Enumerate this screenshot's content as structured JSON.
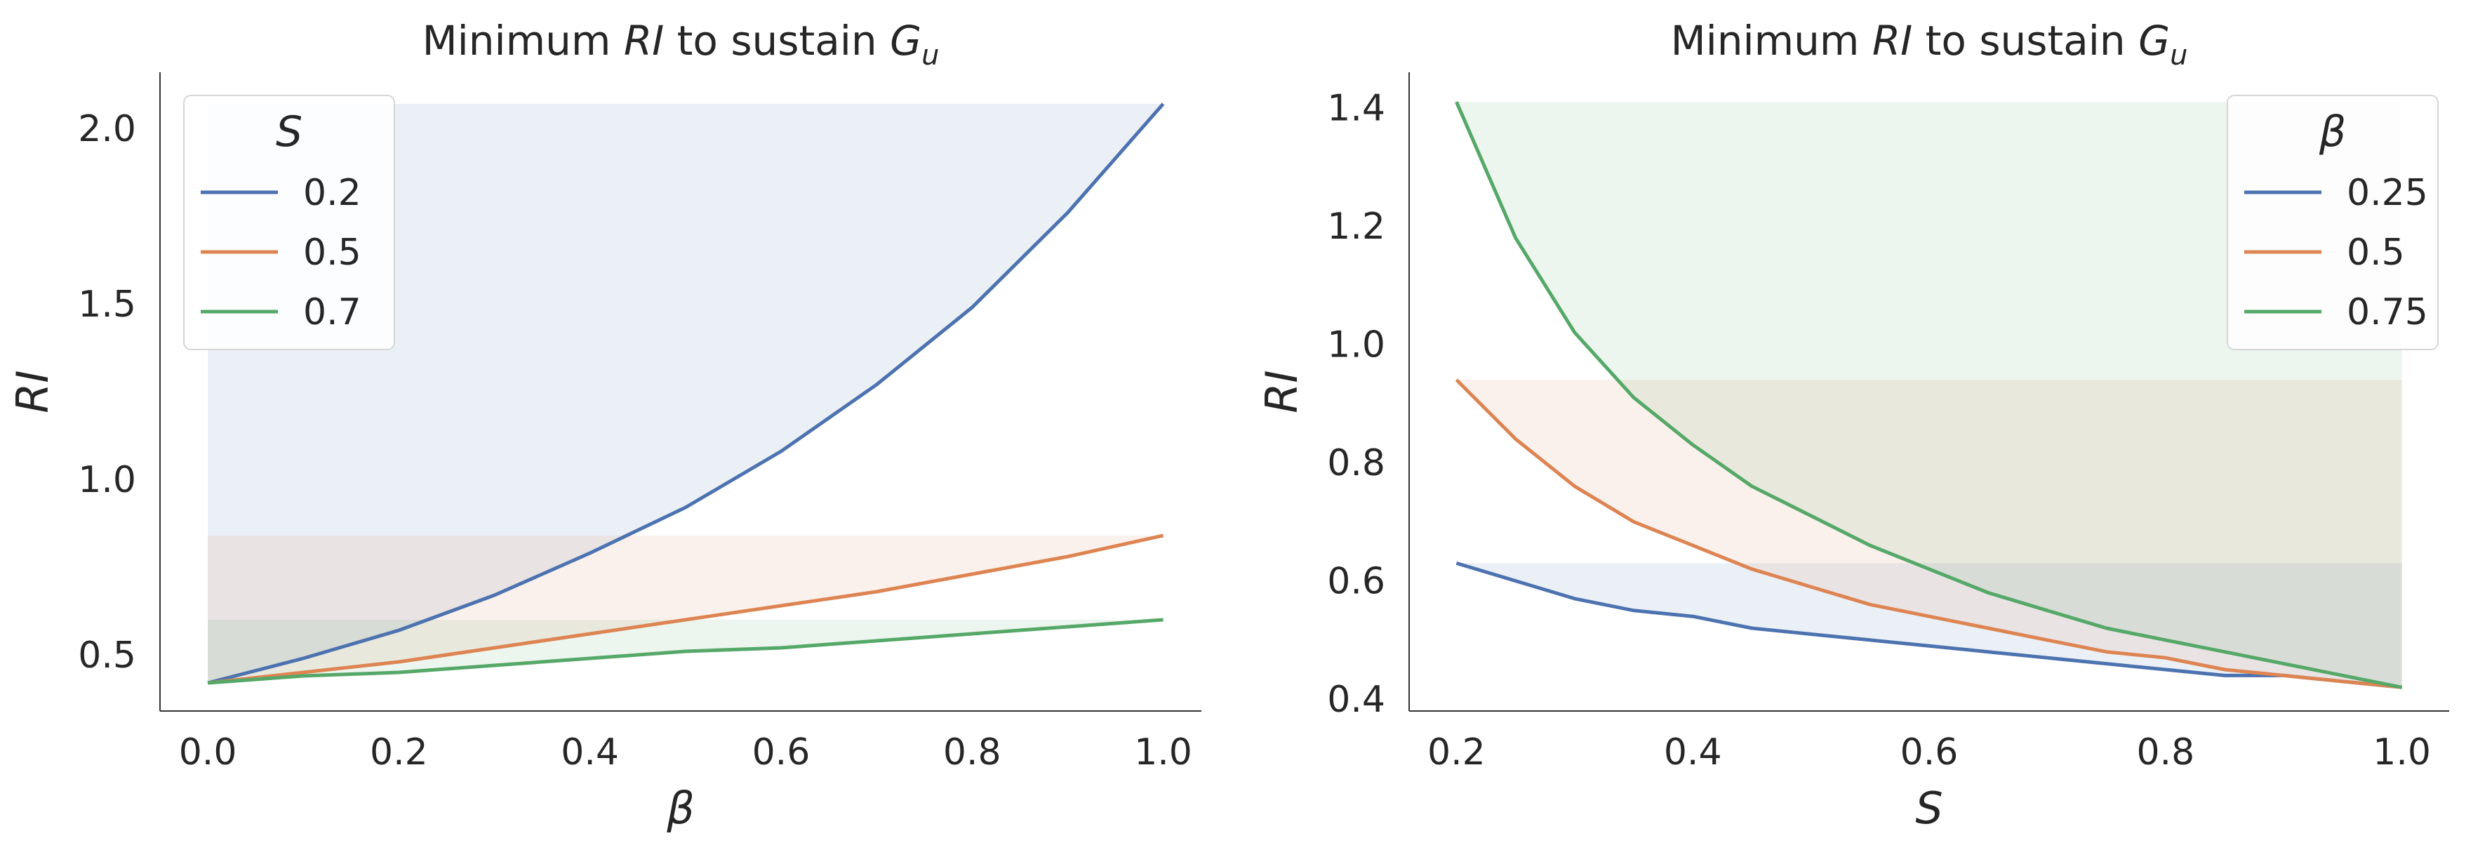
{
  "chart_data": [
    {
      "type": "line",
      "title": "Minimum RI to sustain G_u",
      "title_parts": {
        "pre": "Minimum ",
        "ital": "RI",
        "mid": " to sustain ",
        "sym": "G",
        "sub": "u"
      },
      "xlabel": "β",
      "ylabel": "RI",
      "xlim": [
        -0.05,
        1.04
      ],
      "ylim": [
        0.34,
        2.16
      ],
      "x_ticks": [
        0.0,
        0.2,
        0.4,
        0.6,
        0.8,
        1.0
      ],
      "x_tick_labels": [
        "0.0",
        "0.2",
        "0.4",
        "0.6",
        "0.8",
        "1.0"
      ],
      "y_ticks": [
        0.5,
        1.0,
        1.5,
        2.0
      ],
      "y_tick_labels": [
        "0.5",
        "1.0",
        "1.5",
        "2.0"
      ],
      "grid": false,
      "shaded_region": "between curve and curve maximum",
      "legend": {
        "title": "S",
        "placement": "top-left"
      },
      "x": [
        0.0,
        0.1,
        0.2,
        0.3,
        0.4,
        0.5,
        0.6,
        0.7,
        0.8,
        0.9,
        1.0
      ],
      "series": [
        {
          "name": "0.2",
          "color": "#4c72b0",
          "values": [
            0.42,
            0.49,
            0.57,
            0.67,
            0.79,
            0.92,
            1.08,
            1.27,
            1.49,
            1.76,
            2.07
          ]
        },
        {
          "name": "0.5",
          "color": "#dd8452",
          "values": [
            0.42,
            0.45,
            0.48,
            0.52,
            0.56,
            0.6,
            0.64,
            0.68,
            0.73,
            0.78,
            0.84
          ]
        },
        {
          "name": "0.7",
          "color": "#55a868",
          "values": [
            0.42,
            0.44,
            0.45,
            0.47,
            0.49,
            0.51,
            0.52,
            0.54,
            0.56,
            0.58,
            0.6
          ]
        }
      ]
    },
    {
      "type": "line",
      "title": "Minimum RI to sustain G_u",
      "title_parts": {
        "pre": "Minimum ",
        "ital": "RI",
        "mid": " to sustain ",
        "sym": "G",
        "sub": "u"
      },
      "xlabel": "S",
      "ylabel": "RI",
      "xlim": [
        0.16,
        1.04
      ],
      "ylim": [
        0.38,
        1.46
      ],
      "x_ticks": [
        0.2,
        0.4,
        0.6,
        0.8,
        1.0
      ],
      "x_tick_labels": [
        "0.2",
        "0.4",
        "0.6",
        "0.8",
        "1.0"
      ],
      "y_ticks": [
        0.4,
        0.6,
        0.8,
        1.0,
        1.2,
        1.4
      ],
      "y_tick_labels": [
        "0.4",
        "0.6",
        "0.8",
        "1.0",
        "1.2",
        "1.4"
      ],
      "grid": false,
      "shaded_region": "between curve and curve maximum",
      "legend": {
        "title": "β",
        "placement": "top-right"
      },
      "x": [
        0.2,
        0.25,
        0.3,
        0.35,
        0.4,
        0.45,
        0.5,
        0.55,
        0.6,
        0.65,
        0.7,
        0.75,
        0.8,
        0.85,
        0.9,
        0.95,
        1.0
      ],
      "series": [
        {
          "name": "0.25",
          "color": "#4c72b0",
          "values": [
            0.63,
            0.6,
            0.57,
            0.55,
            0.54,
            0.52,
            0.51,
            0.5,
            0.49,
            0.48,
            0.47,
            0.46,
            0.45,
            0.44,
            0.44,
            0.43,
            0.42
          ]
        },
        {
          "name": "0.5",
          "color": "#dd8452",
          "values": [
            0.94,
            0.84,
            0.76,
            0.7,
            0.66,
            0.62,
            0.59,
            0.56,
            0.54,
            0.52,
            0.5,
            0.48,
            0.47,
            0.45,
            0.44,
            0.43,
            0.42
          ]
        },
        {
          "name": "0.75",
          "color": "#55a868",
          "values": [
            1.41,
            1.18,
            1.02,
            0.91,
            0.83,
            0.76,
            0.71,
            0.66,
            0.62,
            0.58,
            0.55,
            0.52,
            0.5,
            0.48,
            0.46,
            0.44,
            0.42
          ]
        }
      ]
    }
  ]
}
